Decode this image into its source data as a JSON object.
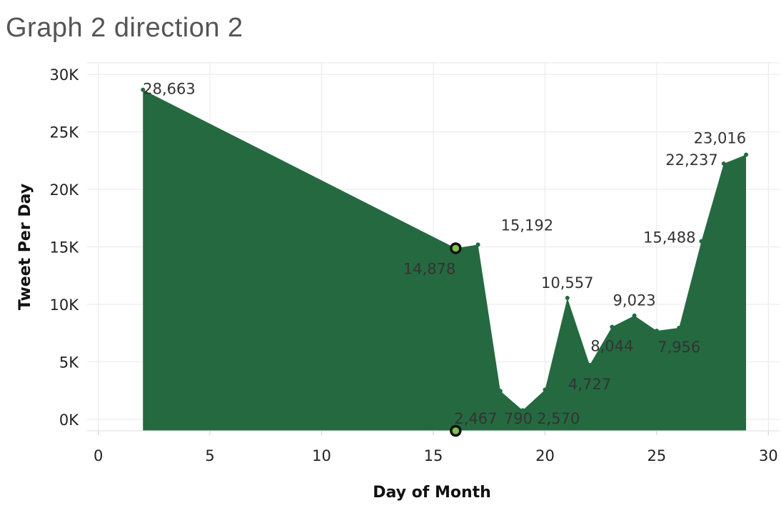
{
  "chart_data": {
    "type": "area",
    "title": "Graph 2 direction 2",
    "xlabel": "Day of Month",
    "ylabel": "Tweet Per Day",
    "xlim": [
      -0.5,
      30.5
    ],
    "ylim": [
      -1000,
      31000
    ],
    "x_ticks": [
      0,
      5,
      10,
      15,
      20,
      25,
      30
    ],
    "x_tick_labels": [
      "0",
      "5",
      "10",
      "15",
      "20",
      "25",
      "30"
    ],
    "y_ticks": [
      0,
      5000,
      10000,
      15000,
      20000,
      25000,
      30000
    ],
    "y_tick_labels": [
      "0K",
      "5K",
      "10K",
      "15K",
      "20K",
      "25K",
      "30K"
    ],
    "grid": true,
    "area_color": "#256940",
    "highlight_color": "#7fbf4f",
    "points": [
      {
        "x": 2,
        "y": 28663,
        "label": "28,663",
        "label_pos": "right"
      },
      {
        "x": 16,
        "y": 14878,
        "label": "14,878",
        "label_pos": "below-left",
        "highlight": true
      },
      {
        "x": 17,
        "y": 15192,
        "label": "15,192",
        "label_pos": "above-right"
      },
      {
        "x": 18,
        "y": 2467,
        "label": "",
        "label_pos": "none"
      },
      {
        "x": 19,
        "y": 790,
        "label": "",
        "label_pos": "none"
      },
      {
        "x": 20,
        "y": 2570,
        "label": "",
        "label_pos": "none"
      },
      {
        "x": 21,
        "y": 10557,
        "label": "10,557",
        "label_pos": "above"
      },
      {
        "x": 22,
        "y": 4727,
        "label": "4,727",
        "label_pos": "below"
      },
      {
        "x": 23,
        "y": 8044,
        "label": "8,044",
        "label_pos": "below-right"
      },
      {
        "x": 24,
        "y": 9023,
        "label": "9,023",
        "label_pos": "above"
      },
      {
        "x": 25,
        "y": 7700,
        "label": "",
        "label_pos": "none"
      },
      {
        "x": 26,
        "y": 7956,
        "label": "7,956",
        "label_pos": "below-right"
      },
      {
        "x": 27,
        "y": 15488,
        "label": "15,488",
        "label_pos": "left"
      },
      {
        "x": 28,
        "y": 22237,
        "label": "22,237",
        "label_pos": "left"
      },
      {
        "x": 29,
        "y": 23016,
        "label": "23,016",
        "label_pos": "above-left"
      }
    ],
    "bottom_labels": [
      {
        "x": 16,
        "text": "2,467",
        "highlight": true
      },
      {
        "x": 18.8,
        "text": "790"
      },
      {
        "x": 20.6,
        "text": "2,570"
      }
    ]
  }
}
